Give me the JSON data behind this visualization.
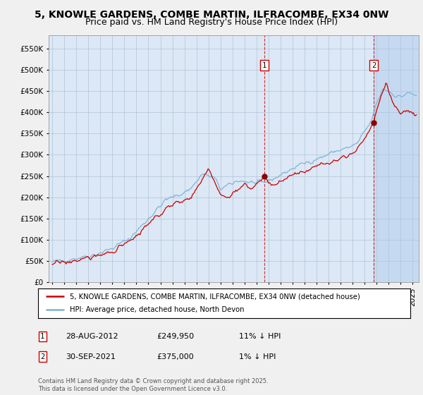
{
  "title1": "5, KNOWLE GARDENS, COMBE MARTIN, ILFRACOMBE, EX34 0NW",
  "title2": "Price paid vs. HM Land Registry's House Price Index (HPI)",
  "ylim": [
    0,
    580000
  ],
  "yticks": [
    0,
    50000,
    100000,
    150000,
    200000,
    250000,
    300000,
    350000,
    400000,
    450000,
    500000,
    550000
  ],
  "xlim_start": 1994.7,
  "xlim_end": 2025.5,
  "sale1_x": 2012.66,
  "sale1_y": 249950,
  "sale2_x": 2021.75,
  "sale2_y": 375000,
  "sale1_label": "1",
  "sale2_label": "2",
  "hpi_color": "#7ab3d4",
  "property_color": "#cc0000",
  "legend_property": "5, KNOWLE GARDENS, COMBE MARTIN, ILFRACOMBE, EX34 0NW (detached house)",
  "legend_hpi": "HPI: Average price, detached house, North Devon",
  "annotation1_date": "28-AUG-2012",
  "annotation1_price": "£249,950",
  "annotation1_hpi": "11% ↓ HPI",
  "annotation2_date": "30-SEP-2021",
  "annotation2_price": "£375,000",
  "annotation2_hpi": "1% ↓ HPI",
  "footer": "Contains HM Land Registry data © Crown copyright and database right 2025.\nThis data is licensed under the Open Government Licence v3.0.",
  "fig_bg_color": "#f0f0f0",
  "plot_bg_color": "#dce8f5",
  "shade_color": "#c5daf0",
  "grid_color": "#b0c4d8",
  "title_fontsize": 10,
  "subtitle_fontsize": 9,
  "tick_fontsize": 7.5,
  "label_fontsize": 8
}
